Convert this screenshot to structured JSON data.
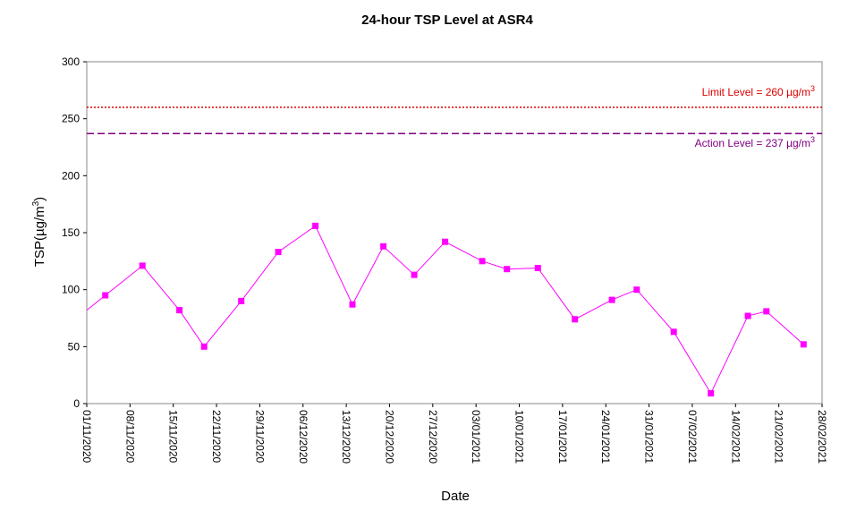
{
  "chart_data": {
    "type": "line",
    "title": "24-hour TSP Level at ASR4",
    "xlabel": "Date",
    "ylabel_prefix": "TSP(",
    "ylabel_unit": "µg/m",
    "ylabel_sup": "3",
    "ylabel_suffix": ")",
    "ylim": [
      0,
      300
    ],
    "yticks": [
      "0",
      "50",
      "100",
      "150",
      "200",
      "250",
      "300"
    ],
    "xlim": [
      "2020-11-01",
      "2021-02-28"
    ],
    "xticks": [
      "01/11/2020",
      "08/11/2020",
      "15/11/2020",
      "22/11/2020",
      "29/11/2020",
      "06/12/2020",
      "13/12/2020",
      "20/12/2020",
      "27/12/2020",
      "03/01/2021",
      "10/01/2021",
      "17/01/2021",
      "24/01/2021",
      "31/01/2021",
      "07/02/2021",
      "14/02/2021",
      "21/02/2021",
      "28/02/2021"
    ],
    "grid": false,
    "series": [
      {
        "color": "#ff00ff",
        "points": [
          {
            "x": "2020-11-04",
            "y": 95
          },
          {
            "x": "2020-11-10",
            "y": 121
          },
          {
            "x": "2020-11-16",
            "y": 82
          },
          {
            "x": "2020-11-20",
            "y": 50
          },
          {
            "x": "2020-11-26",
            "y": 90
          },
          {
            "x": "2020-12-02",
            "y": 133
          },
          {
            "x": "2020-12-08",
            "y": 156
          },
          {
            "x": "2020-12-14",
            "y": 87
          },
          {
            "x": "2020-12-19",
            "y": 138
          },
          {
            "x": "2020-12-24",
            "y": 113
          },
          {
            "x": "2020-12-29",
            "y": 142
          },
          {
            "x": "2021-01-04",
            "y": 125
          },
          {
            "x": "2021-01-08",
            "y": 118
          },
          {
            "x": "2021-01-13",
            "y": 119
          },
          {
            "x": "2021-01-19",
            "y": 74
          },
          {
            "x": "2021-01-25",
            "y": 91
          },
          {
            "x": "2021-01-29",
            "y": 100
          },
          {
            "x": "2021-02-04",
            "y": 63
          },
          {
            "x": "2021-02-10",
            "y": 9
          },
          {
            "x": "2021-02-16",
            "y": 77
          },
          {
            "x": "2021-02-19",
            "y": 81
          },
          {
            "x": "2021-02-25",
            "y": 52
          }
        ]
      }
    ],
    "reference_lines": [
      {
        "label_text": "Limit Level  = 260 ",
        "label_unit": "µg/m",
        "label_sup": "3",
        "value": 260,
        "color": "#dd0000",
        "style": "dotted",
        "label_position": "above"
      },
      {
        "label_text": "Action Level  = 237 ",
        "label_unit": "µg/m",
        "label_sup": "3",
        "value": 237,
        "color": "#800080",
        "style": "dashed",
        "label_position": "below"
      }
    ]
  }
}
